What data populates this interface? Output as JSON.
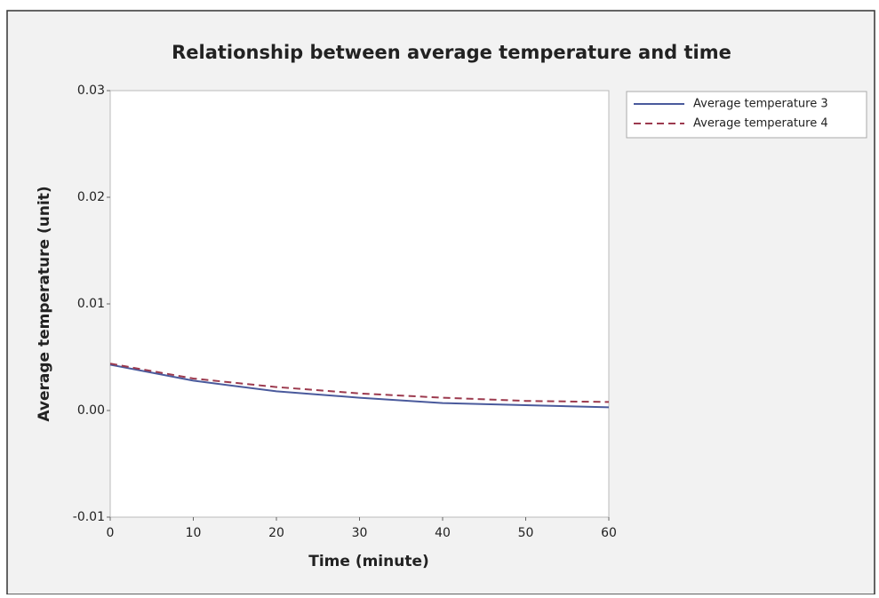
{
  "chart_data": {
    "type": "line",
    "title": "Relationship between average temperature and time",
    "xlabel": "Time (minute)",
    "ylabel": "Average temperature (unit)",
    "x": [
      0,
      10,
      20,
      30,
      40,
      50,
      60
    ],
    "series": [
      {
        "name": "Average temperature 3",
        "color": "#4a5a9c",
        "dash": false,
        "values": [
          0.0043,
          0.0028,
          0.0018,
          0.0012,
          0.0007,
          0.0005,
          0.0003
        ]
      },
      {
        "name": "Average temperature 4",
        "color": "#9c3a4e",
        "dash": true,
        "values": [
          0.0044,
          0.003,
          0.0022,
          0.0016,
          0.0012,
          0.0009,
          0.0008
        ]
      }
    ],
    "xlim": [
      0,
      60
    ],
    "xticks": [
      0,
      10,
      20,
      30,
      40,
      50,
      60
    ],
    "ylim": [
      -0.01,
      0.03
    ],
    "yticks": [
      -0.01,
      {
        "value": 0,
        "label": "0.00"
      },
      0.01,
      0.02,
      0.03
    ],
    "legend": "upper right"
  }
}
